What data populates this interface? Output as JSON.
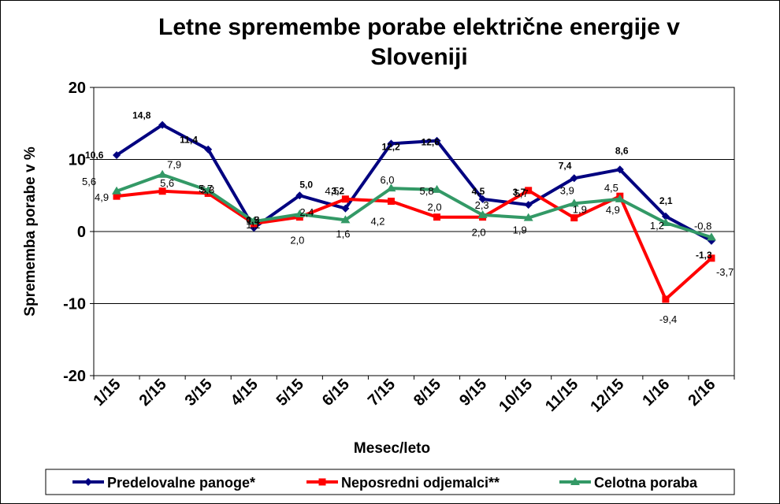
{
  "chart_data": {
    "type": "line",
    "title_lines": [
      "Letne spremembe porabe električne energije v",
      "Sloveniji"
    ],
    "xlabel": "Mesec/leto",
    "ylabel": "Sprememba porabe v %",
    "ylim": [
      -20,
      20
    ],
    "yticks": [
      "20",
      "10",
      "0",
      "-10",
      "-20"
    ],
    "grid": "horizontal",
    "legend_position": "bottom",
    "categories": [
      "1/15",
      "2/15",
      "3/15",
      "4/15",
      "5/15",
      "6/15",
      "7/15",
      "8/15",
      "9/15",
      "10/15",
      "11/15",
      "12/15",
      "1/16",
      "2/16"
    ],
    "series": [
      {
        "name": "Predelovalne panoge*",
        "color": "#000080",
        "marker": "diamond",
        "values": [
          10.6,
          14.8,
          11.4,
          0.5,
          5.0,
          3.2,
          12.2,
          12.6,
          4.5,
          3.7,
          7.4,
          8.6,
          2.1,
          -1.3
        ],
        "labels": [
          "10,6",
          "14,8",
          "11,4",
          "0,5",
          "5,0",
          "3,2",
          "12,2",
          "12,6",
          "4,5",
          "3,7",
          "7,4",
          "8,6",
          "2,1",
          "-1,3"
        ]
      },
      {
        "name": "Neposredni odjemalci**",
        "color": "#ff0000",
        "marker": "square",
        "values": [
          4.9,
          5.6,
          5.3,
          1.1,
          2.0,
          4.5,
          4.2,
          2.0,
          2.0,
          5.7,
          1.9,
          4.9,
          -9.4,
          -3.7
        ],
        "labels": [
          "4,9",
          "5,6",
          "5,3",
          "1,1",
          "2,0",
          "4,5",
          "4,2",
          "2,0",
          "2,0",
          "5,7",
          "1,9",
          "4,9",
          "-9,4",
          "-3,7"
        ]
      },
      {
        "name": "Celotna poraba",
        "color": "#339966",
        "marker": "triangle",
        "values": [
          5.6,
          7.9,
          5.7,
          1.4,
          2.4,
          1.6,
          6.0,
          5.8,
          2.3,
          1.9,
          3.9,
          4.5,
          1.2,
          -0.8
        ],
        "labels": [
          "5,6",
          "7,9",
          "5,7",
          "1,4",
          "2,4",
          "1,6",
          "6,0",
          "5,8",
          "2,3",
          "1,9",
          "3,9",
          "4,5",
          "1,2",
          "-0,8"
        ]
      }
    ]
  }
}
